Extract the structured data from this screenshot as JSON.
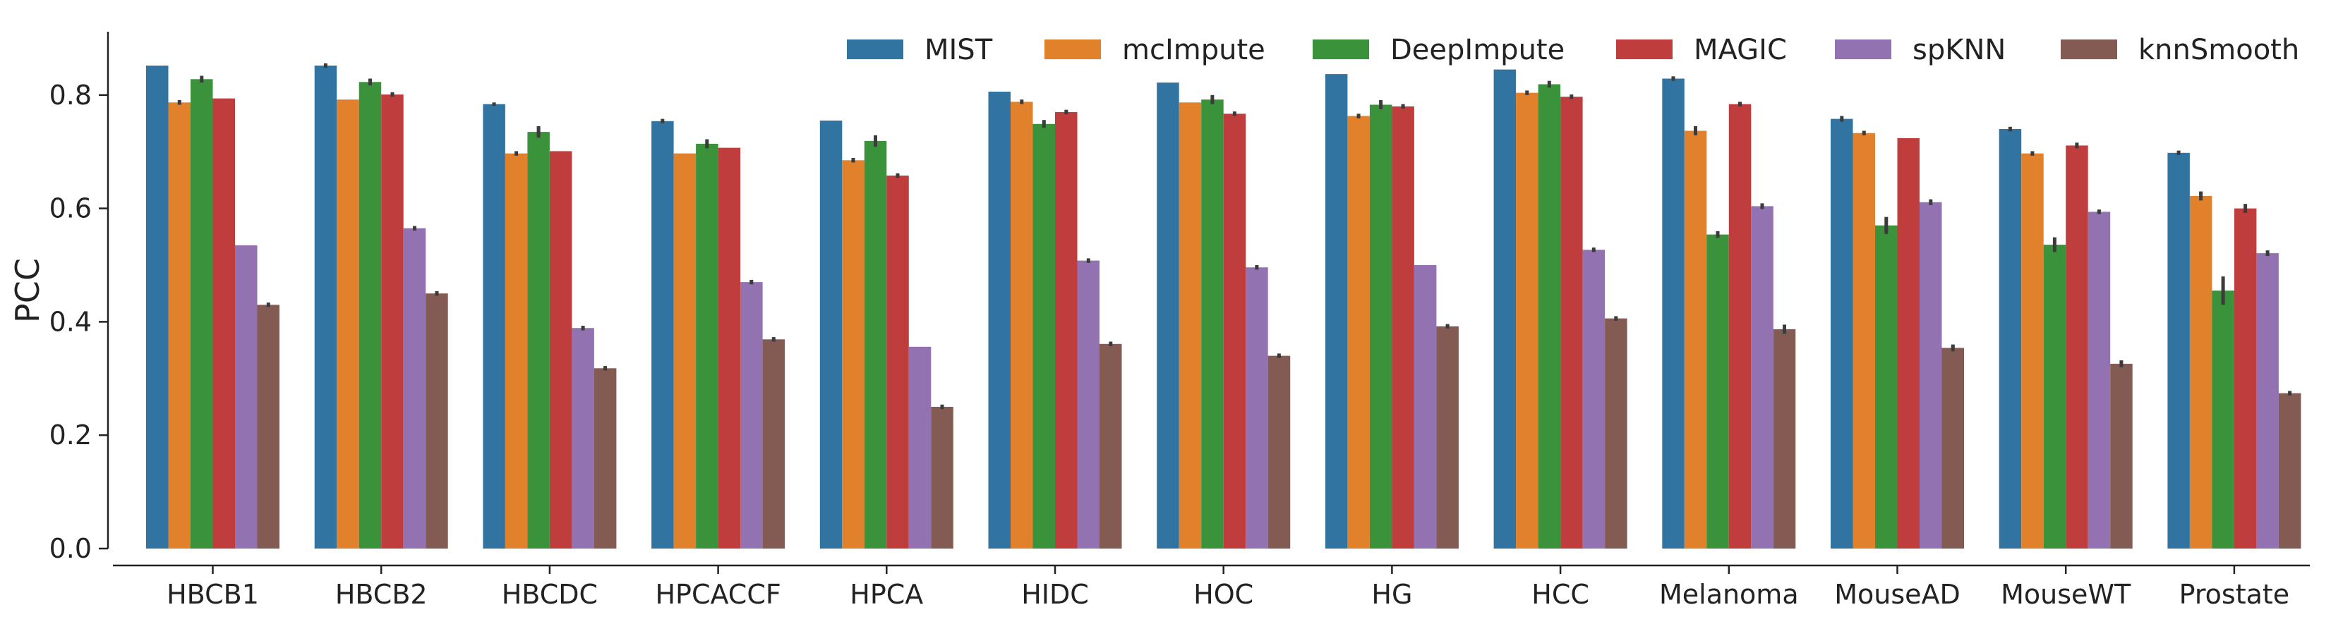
{
  "chart_data": {
    "type": "bar",
    "ylabel": "PCC",
    "xlabel": "",
    "ylim": [
      0,
      0.86
    ],
    "yticks": [
      "0.0",
      "0.2",
      "0.4",
      "0.6",
      "0.8"
    ],
    "categories": [
      "HBCB1",
      "HBCB2",
      "HBCDC",
      "HPCACCF",
      "HPCA",
      "HIDC",
      "HOC",
      "HG",
      "HCC",
      "Melanoma",
      "MouseAD",
      "MouseWT",
      "Prostate"
    ],
    "legend_position": "top-right",
    "grid": false,
    "series": [
      {
        "name": "MIST",
        "color": "#3274a1",
        "values": [
          0.852,
          0.852,
          0.784,
          0.754,
          0.755,
          0.806,
          0.822,
          0.837,
          0.845,
          0.829,
          0.758,
          0.74,
          0.698
        ],
        "errors": [
          0.0,
          0.004,
          0.003,
          0.004,
          0.0,
          0.0,
          0.0,
          0.0,
          0.0,
          0.004,
          0.005,
          0.004,
          0.004
        ]
      },
      {
        "name": "mcImpute",
        "color": "#e1812c",
        "values": [
          0.787,
          0.792,
          0.697,
          0.697,
          0.685,
          0.788,
          0.787,
          0.763,
          0.804,
          0.737,
          0.733,
          0.697,
          0.622
        ],
        "errors": [
          0.004,
          0.0,
          0.004,
          0.0,
          0.004,
          0.004,
          0.0,
          0.004,
          0.004,
          0.008,
          0.004,
          0.004,
          0.008
        ]
      },
      {
        "name": "DeepImpute",
        "color": "#3a923a",
        "values": [
          0.828,
          0.823,
          0.735,
          0.714,
          0.719,
          0.749,
          0.792,
          0.783,
          0.819,
          0.554,
          0.57,
          0.536,
          0.455
        ],
        "errors": [
          0.006,
          0.006,
          0.01,
          0.008,
          0.01,
          0.007,
          0.008,
          0.008,
          0.006,
          0.006,
          0.015,
          0.013,
          0.025
        ]
      },
      {
        "name": "MAGIC",
        "color": "#c03d3e",
        "values": [
          0.794,
          0.801,
          0.701,
          0.707,
          0.658,
          0.77,
          0.767,
          0.78,
          0.797,
          0.784,
          0.724,
          0.711,
          0.6
        ],
        "errors": [
          0.0,
          0.004,
          0.0,
          0.0,
          0.004,
          0.004,
          0.004,
          0.004,
          0.004,
          0.004,
          0.0,
          0.005,
          0.008
        ]
      },
      {
        "name": "spKNN",
        "color": "#9372b2",
        "values": [
          0.535,
          0.565,
          0.389,
          0.47,
          0.356,
          0.508,
          0.496,
          0.5,
          0.527,
          0.604,
          0.611,
          0.594,
          0.521
        ],
        "errors": [
          0.0,
          0.004,
          0.004,
          0.004,
          0.0,
          0.004,
          0.004,
          0.0,
          0.004,
          0.005,
          0.005,
          0.004,
          0.005
        ]
      },
      {
        "name": "knnSmooth",
        "color": "#845b53",
        "values": [
          0.43,
          0.45,
          0.318,
          0.369,
          0.25,
          0.361,
          0.34,
          0.392,
          0.406,
          0.387,
          0.354,
          0.326,
          0.274
        ],
        "errors": [
          0.004,
          0.004,
          0.004,
          0.004,
          0.004,
          0.004,
          0.004,
          0.004,
          0.004,
          0.008,
          0.006,
          0.006,
          0.004
        ]
      }
    ]
  }
}
